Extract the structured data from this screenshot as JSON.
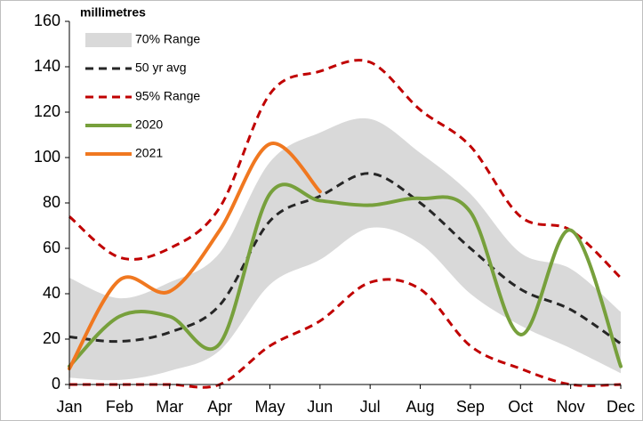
{
  "chart_data": {
    "type": "line",
    "y_label": "millimetres",
    "categories": [
      "Jan",
      "Feb",
      "Mar",
      "Apr",
      "May",
      "Jun",
      "Jul",
      "Aug",
      "Sep",
      "Oct",
      "Nov",
      "Dec"
    ],
    "ylim": [
      0,
      160
    ],
    "yticks": [
      0,
      20,
      40,
      60,
      80,
      100,
      120,
      140,
      160
    ],
    "grid": false,
    "legend": "top-left",
    "series": [
      {
        "name": "70% Range",
        "kind": "band",
        "color": "#d9d9d9",
        "upper": [
          47,
          38,
          45,
          58,
          98,
          111,
          117,
          102,
          84,
          58,
          51,
          32
        ],
        "lower": [
          3,
          2,
          6,
          15,
          44,
          55,
          69,
          62,
          40,
          26,
          16,
          5
        ]
      },
      {
        "name": "50 yr avg",
        "kind": "line",
        "dashed": true,
        "color": "#262626",
        "values": [
          21,
          19,
          23,
          35,
          72,
          83,
          93,
          80,
          60,
          42,
          33,
          18
        ]
      },
      {
        "name": "95% Range",
        "kind": "range-lines",
        "dashed": true,
        "color": "#c00000",
        "upper": [
          74,
          56,
          60,
          78,
          128,
          138,
          142,
          121,
          105,
          74,
          68,
          47
        ],
        "lower": [
          0,
          0,
          0,
          0,
          17,
          28,
          45,
          42,
          17,
          7,
          0,
          0
        ]
      },
      {
        "name": "2020",
        "kind": "line",
        "dashed": false,
        "color": "#77a03c",
        "values": [
          8,
          30,
          30,
          18,
          84,
          81,
          79,
          82,
          76,
          22,
          68,
          8
        ]
      },
      {
        "name": "2021",
        "kind": "line",
        "dashed": false,
        "color": "#f07820",
        "values": [
          7,
          46,
          41,
          68,
          106,
          85,
          null,
          null,
          null,
          null,
          null,
          null
        ]
      }
    ]
  }
}
